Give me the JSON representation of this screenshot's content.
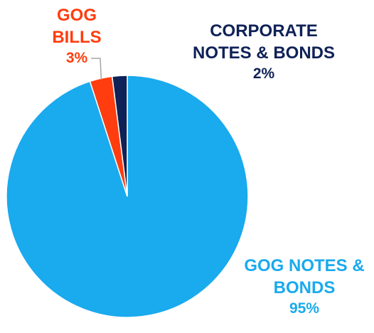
{
  "chart_data": {
    "type": "pie",
    "title": "",
    "slices": [
      {
        "label_lines": [
          "GOG NOTES &",
          "BONDS"
        ],
        "value": 95,
        "value_label": "95%",
        "color": "#1aaaee"
      },
      {
        "label_lines": [
          "GOG",
          "BILLS"
        ],
        "value": 3,
        "value_label": "3%",
        "color": "#ff3d0f"
      },
      {
        "label_lines": [
          "CORPORATE",
          "NOTES & BONDS"
        ],
        "value": 2,
        "value_label": "2%",
        "color": "#0f2257"
      }
    ],
    "start_angle_deg": 0,
    "direction": "counterclockwise",
    "leader_lines": true
  }
}
